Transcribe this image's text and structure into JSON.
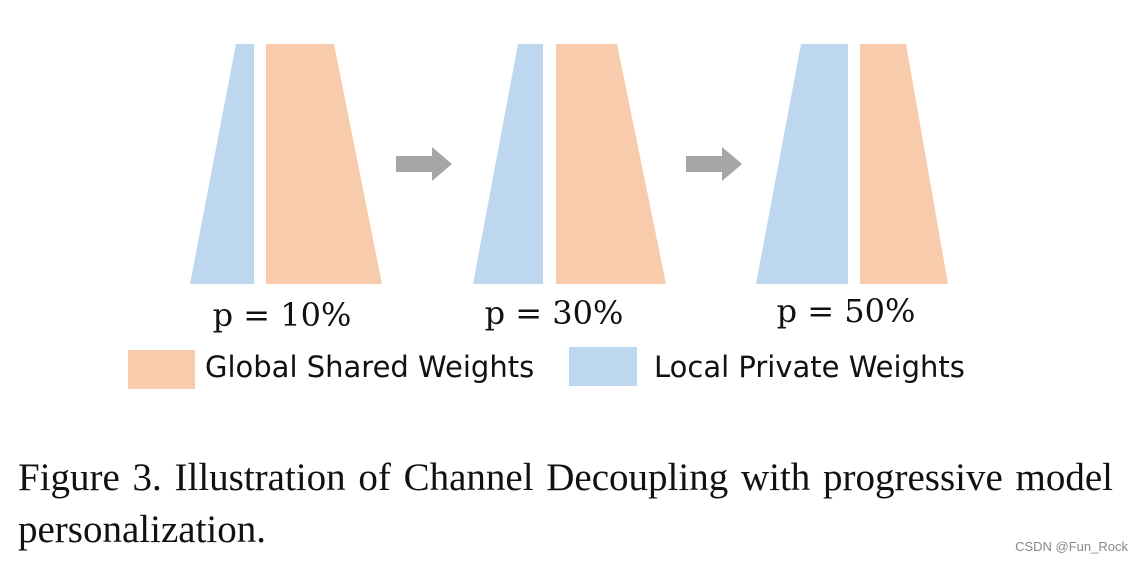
{
  "panels": [
    {
      "label": "p = 10%"
    },
    {
      "label": "p = 30%"
    },
    {
      "label": "p = 50%"
    }
  ],
  "legend": {
    "global": "Global Shared Weights",
    "local": "Local Private Weights"
  },
  "caption": "Figure 3.  Illustration of Channel Decoupling with progressive model personalization.",
  "watermark": "CSDN @Fun_Rock"
}
